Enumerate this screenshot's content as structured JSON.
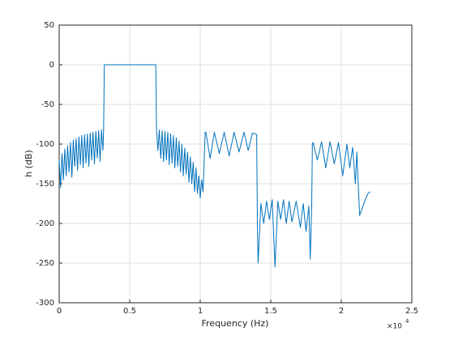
{
  "chart_data": {
    "type": "line",
    "xlabel": "Frequency (Hz)",
    "ylabel": "h (dB)",
    "x_multiplier": "×10",
    "x_multiplier_exponent": "4",
    "xlim": [
      0,
      25000
    ],
    "ylim": [
      -300,
      50
    ],
    "xticks": [
      0,
      {
        "value": 5000,
        "label": "0.5"
      },
      {
        "value": 10000,
        "label": "1"
      },
      {
        "value": 15000,
        "label": "1.5"
      },
      {
        "value": 20000,
        "label": "2"
      },
      {
        "value": 25000,
        "label": "2.5"
      }
    ],
    "yticks": [
      -300,
      -250,
      -200,
      -150,
      -100,
      -50,
      0,
      50
    ],
    "grid": true,
    "x": [
      0,
      100,
      200,
      300,
      400,
      500,
      600,
      700,
      800,
      900,
      1000,
      1100,
      1200,
      1300,
      1400,
      1500,
      1600,
      1700,
      1800,
      1900,
      2000,
      2100,
      2200,
      2300,
      2400,
      2500,
      2600,
      2700,
      2800,
      2900,
      3000,
      3100,
      3150,
      3200,
      3500,
      5000,
      6500,
      6850,
      6900,
      7000,
      7100,
      7200,
      7300,
      7400,
      7500,
      7600,
      7700,
      7800,
      7900,
      8000,
      8100,
      8200,
      8300,
      8400,
      8500,
      8600,
      8700,
      8800,
      8900,
      9000,
      9100,
      9200,
      9300,
      9400,
      9500,
      9600,
      9700,
      9800,
      9900,
      10000,
      10100,
      10200,
      10350,
      10400,
      10700,
      11000,
      11350,
      11700,
      12050,
      12400,
      12750,
      13100,
      13400,
      13700,
      14000,
      14050,
      14100,
      14300,
      14500,
      14700,
      14900,
      15100,
      15300,
      15500,
      15700,
      15900,
      16100,
      16300,
      16500,
      16800,
      17100,
      17300,
      17500,
      17700,
      17800,
      17900,
      17950,
      18000,
      18300,
      18600,
      18900,
      19200,
      19500,
      19800,
      20100,
      20400,
      20600,
      20800,
      21000,
      21100,
      21200,
      21300,
      21500,
      21700,
      21900,
      22050
    ],
    "series": [
      {
        "name": "h",
        "color": "#0072bd",
        "values": [
          -120,
          -155,
          -112,
          -145,
          -106,
          -140,
          -102,
          -135,
          -98,
          -142,
          -95,
          -128,
          -93,
          -133,
          -91,
          -126,
          -89,
          -130,
          -88,
          -124,
          -87,
          -128,
          -86,
          -120,
          -85,
          -125,
          -84,
          -118,
          -83,
          -122,
          -82,
          -108,
          -82,
          0,
          0,
          0,
          0,
          0,
          -82,
          -108,
          -82,
          -118,
          -83,
          -122,
          -84,
          -120,
          -85,
          -126,
          -87,
          -124,
          -89,
          -130,
          -92,
          -128,
          -96,
          -135,
          -100,
          -140,
          -105,
          -138,
          -110,
          -148,
          -116,
          -150,
          -123,
          -160,
          -130,
          -162,
          -140,
          -168,
          -145,
          -160,
          -85,
          -85,
          -118,
          -85,
          -112,
          -85,
          -115,
          -85,
          -110,
          -85,
          -108,
          -86,
          -88,
          -200,
          -250,
          -175,
          -200,
          -172,
          -195,
          -170,
          -255,
          -172,
          -195,
          -170,
          -200,
          -172,
          -198,
          -172,
          -205,
          -175,
          -210,
          -178,
          -245,
          -180,
          -100,
          -98,
          -120,
          -97,
          -130,
          -97,
          -125,
          -98,
          -140,
          -100,
          -130,
          -104,
          -150,
          -110,
          -150,
          -190,
          -180,
          -170,
          -162,
          -160
        ]
      }
    ]
  }
}
